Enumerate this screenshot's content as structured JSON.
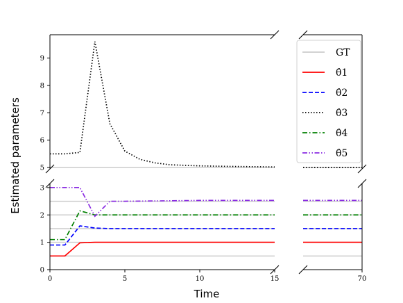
{
  "chart_data": {
    "type": "line",
    "xlabel": "Time",
    "ylabel": "Estimated parameters",
    "x_break": {
      "left_range": [
        0,
        15
      ],
      "right_range": [
        69.5,
        70
      ]
    },
    "y_break": {
      "upper_range": [
        4.95,
        9.85
      ],
      "lower_range": [
        0,
        3.15
      ]
    },
    "x_ticks_left": [
      0,
      5,
      10,
      15
    ],
    "x_ticks_right": [
      70
    ],
    "y_ticks_upper": [
      5,
      6,
      7,
      8,
      9
    ],
    "y_ticks_lower": [
      0,
      1,
      2,
      3
    ],
    "gt_levels": [
      0.5,
      1.0,
      1.5,
      2.0,
      2.5,
      5.0
    ],
    "legend_position": "upper-right",
    "series": [
      {
        "name": "GT",
        "color": "#cccccc",
        "dash": "solid",
        "panel": "both"
      },
      {
        "name": "θ̂1",
        "color": "#ff0000",
        "dash": "solid",
        "panel": "lower",
        "x": [
          0,
          1,
          2,
          3,
          4,
          5,
          10,
          15,
          70
        ],
        "y": [
          0.5,
          0.5,
          0.98,
          1.0,
          1.0,
          1.0,
          1.0,
          1.0,
          1.0
        ]
      },
      {
        "name": "θ̂2",
        "color": "#0000ff",
        "dash": "dashed",
        "panel": "lower",
        "x": [
          0,
          1,
          2,
          3,
          4,
          5,
          10,
          15,
          70
        ],
        "y": [
          0.9,
          0.9,
          1.6,
          1.52,
          1.5,
          1.5,
          1.5,
          1.5,
          1.5
        ]
      },
      {
        "name": "θ̂3",
        "color": "#000000",
        "dash": "dotted",
        "panel": "upper",
        "x": [
          0,
          1,
          2,
          3,
          4,
          5,
          6,
          7,
          8,
          10,
          12,
          15,
          70
        ],
        "y": [
          5.5,
          5.5,
          5.55,
          9.6,
          6.6,
          5.6,
          5.3,
          5.17,
          5.1,
          5.06,
          5.04,
          5.02,
          5.0
        ]
      },
      {
        "name": "θ̂4",
        "color": "#008000",
        "dash": "dashdot",
        "panel": "lower",
        "x": [
          0,
          1,
          2,
          3,
          4,
          5,
          10,
          15,
          70
        ],
        "y": [
          1.1,
          1.1,
          2.15,
          2.0,
          2.0,
          2.0,
          2.0,
          2.0,
          2.0
        ]
      },
      {
        "name": "θ̂5",
        "color": "#8a2be2",
        "dash": "dashdotdot",
        "panel": "lower",
        "x": [
          0,
          1,
          2,
          3,
          4,
          5,
          10,
          15,
          70
        ],
        "y": [
          3.0,
          3.0,
          3.0,
          1.95,
          2.5,
          2.5,
          2.53,
          2.53,
          2.53
        ]
      }
    ]
  }
}
